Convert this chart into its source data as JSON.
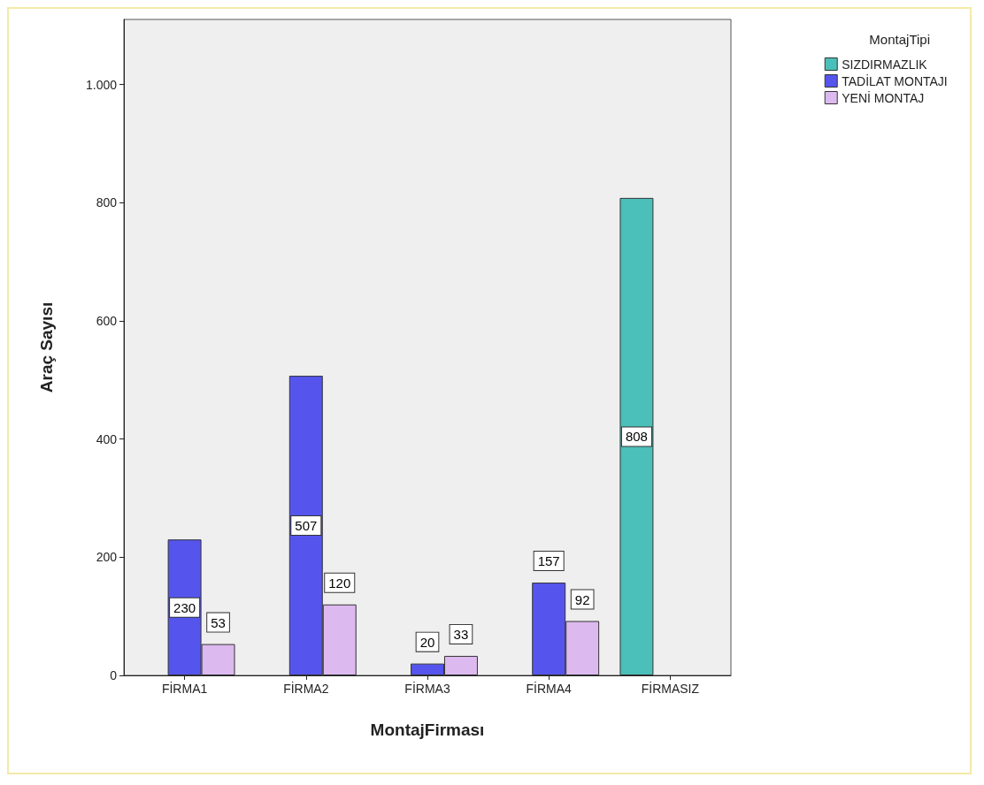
{
  "chart_data": {
    "type": "bar",
    "xlabel": "MontajFirması",
    "ylabel": "Araç Sayısı",
    "legend_title": "MontajTipi",
    "categories": [
      "FİRMA1",
      "FİRMA2",
      "FİRMA3",
      "FİRMA4",
      "FİRMASIZ"
    ],
    "series": [
      {
        "name": "SIZDIRMAZLIK",
        "color": "#4bbfb9",
        "values": [
          null,
          null,
          null,
          null,
          808
        ]
      },
      {
        "name": "TADİLAT MONTAJI",
        "color": "#5555ee",
        "values": [
          230,
          507,
          20,
          157,
          null
        ]
      },
      {
        "name": "YENİ MONTAJ",
        "color": "#dcb9ef",
        "values": [
          53,
          120,
          33,
          92,
          null
        ]
      }
    ],
    "ylim": [
      0,
      1110
    ],
    "yticks": [
      0,
      200,
      400,
      600,
      800,
      {
        "value": 1000,
        "label": "1.000"
      }
    ],
    "data_labels": true,
    "grid": false,
    "legend": "top right"
  }
}
